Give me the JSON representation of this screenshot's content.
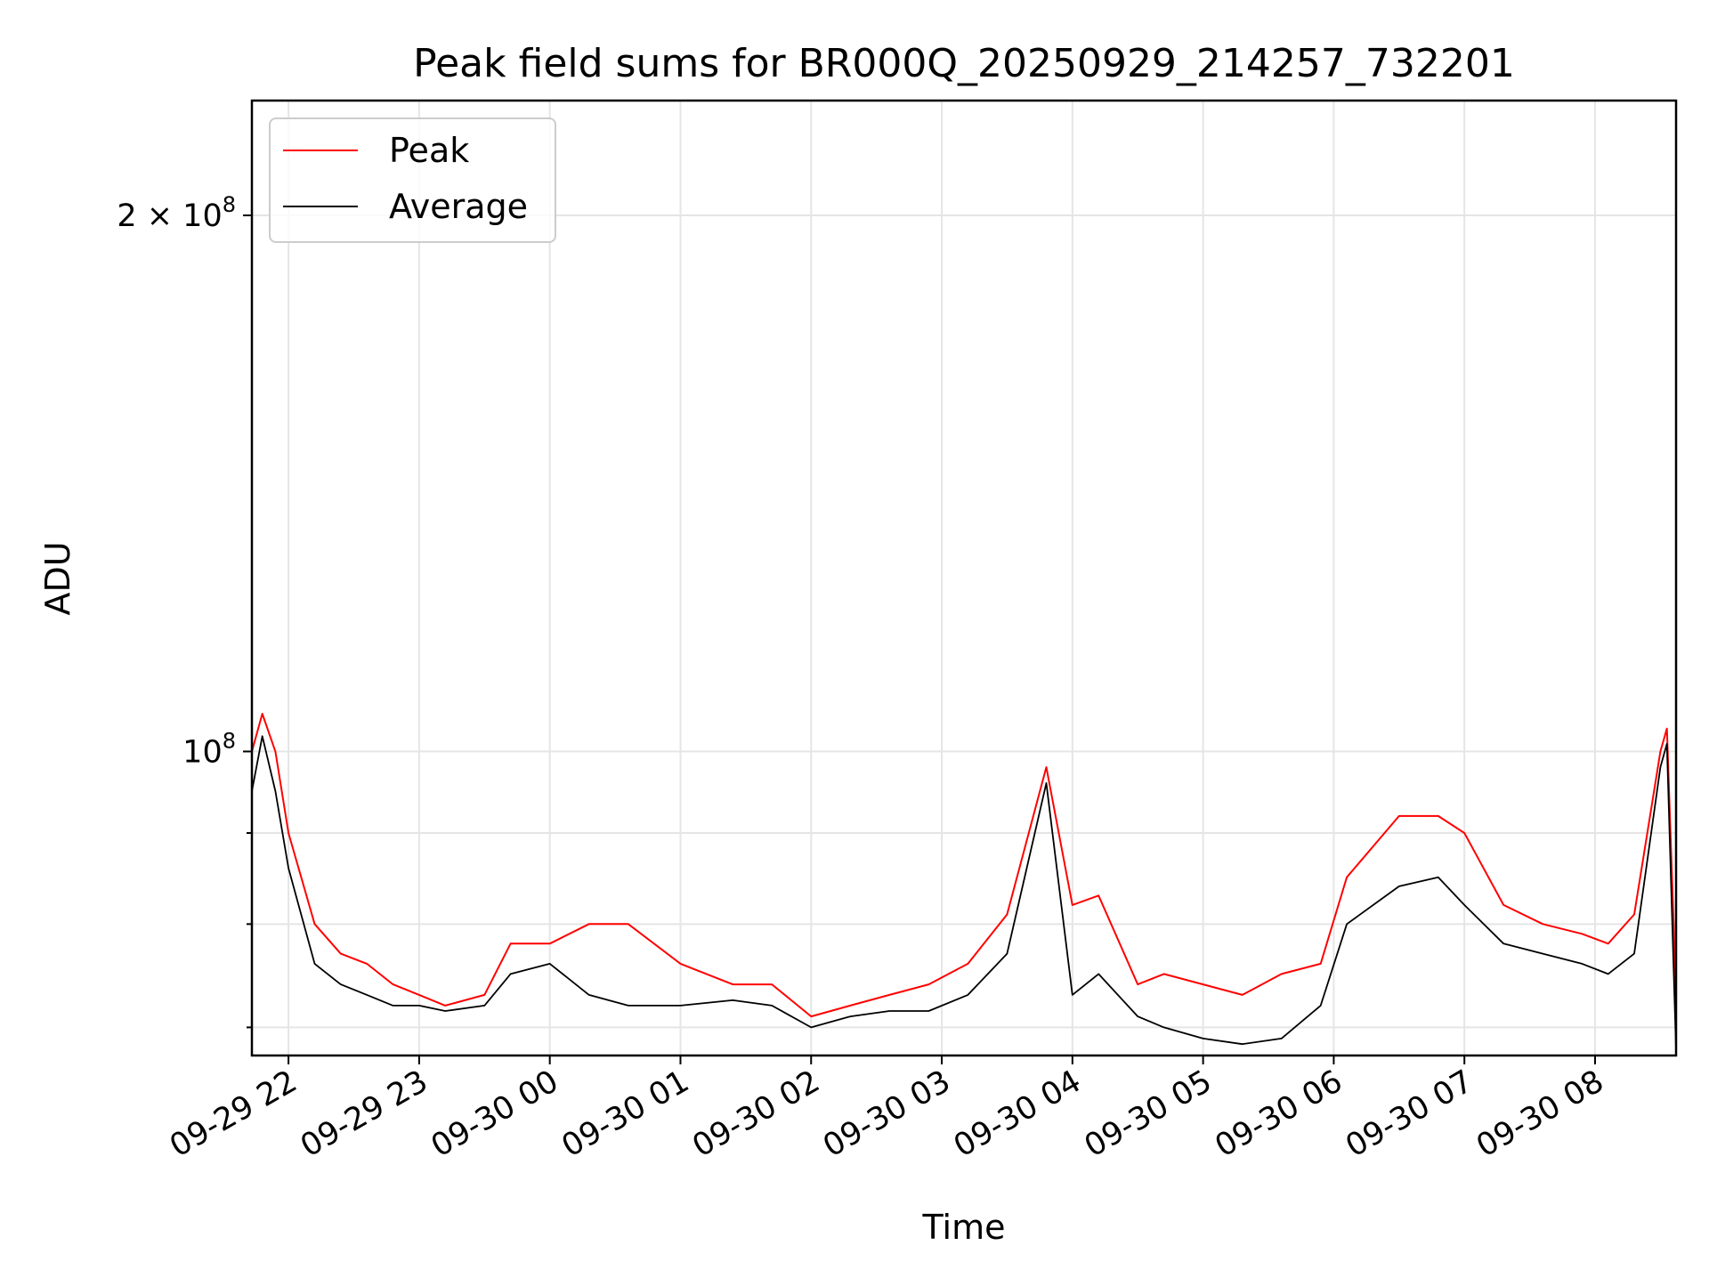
{
  "chart_data": {
    "type": "line",
    "title": "Peak field sums for BR000Q_20250929_214257_732201",
    "xlabel": "Time",
    "ylabel": "ADU",
    "yscale": "log",
    "ylim": [
      67500000,
      232000000
    ],
    "y_ticks": [
      {
        "value": 100000000,
        "label_base": "10",
        "label_exp": "8"
      },
      {
        "value": 200000000,
        "label_base": "2 × 10",
        "label_exp": "8"
      }
    ],
    "y_minor_ticks": [
      70000000,
      80000000,
      90000000
    ],
    "x_ticks": [
      "09-29 22",
      "09-29 23",
      "09-30 00",
      "09-30 01",
      "09-30 02",
      "09-30 03",
      "09-30 04",
      "09-30 05",
      "09-30 06",
      "09-30 07",
      "09-30 08"
    ],
    "xlim_hours": [
      21.72,
      32.62
    ],
    "grid": true,
    "legend_position": "upper left",
    "series": [
      {
        "name": "Peak",
        "color": "#ff0000",
        "x_hours": [
          21.72,
          21.8,
          21.9,
          22.0,
          22.2,
          22.4,
          22.6,
          22.8,
          23.0,
          23.2,
          23.5,
          23.7,
          24.0,
          24.3,
          24.6,
          25.0,
          25.4,
          25.7,
          26.0,
          26.3,
          26.6,
          26.9,
          27.2,
          27.5,
          27.8,
          28.0,
          28.2,
          28.5,
          28.7,
          29.0,
          29.3,
          29.6,
          29.9,
          30.1,
          30.5,
          30.8,
          31.0,
          31.3,
          31.6,
          31.9,
          32.1,
          32.3,
          32.5,
          32.55,
          32.62
        ],
        "values": [
          100000000,
          105000000,
          100000000,
          90000000,
          80000000,
          77000000,
          76000000,
          74000000,
          73000000,
          72000000,
          73000000,
          78000000,
          78000000,
          80000000,
          80000000,
          76000000,
          74000000,
          74000000,
          71000000,
          72000000,
          73000000,
          74000000,
          76000000,
          81000000,
          98000000,
          82000000,
          83000000,
          74000000,
          75000000,
          74000000,
          73000000,
          75000000,
          76000000,
          85000000,
          92000000,
          92000000,
          90000000,
          82000000,
          80000000,
          79000000,
          78000000,
          81000000,
          100000000,
          103000000,
          73000000
        ]
      },
      {
        "name": "Average",
        "color": "#000000",
        "x_hours": [
          21.72,
          21.8,
          21.9,
          22.0,
          22.2,
          22.4,
          22.6,
          22.8,
          23.0,
          23.2,
          23.5,
          23.7,
          24.0,
          24.3,
          24.6,
          25.0,
          25.4,
          25.7,
          26.0,
          26.3,
          26.6,
          26.9,
          27.2,
          27.5,
          27.8,
          28.0,
          28.2,
          28.5,
          28.7,
          29.0,
          29.3,
          29.6,
          29.9,
          30.1,
          30.5,
          30.8,
          31.0,
          31.3,
          31.6,
          31.9,
          32.1,
          32.3,
          32.5,
          32.55,
          32.62
        ],
        "values": [
          95000000,
          102000000,
          95000000,
          86000000,
          76000000,
          74000000,
          73000000,
          72000000,
          72000000,
          71500000,
          72000000,
          75000000,
          76000000,
          73000000,
          72000000,
          72000000,
          72500000,
          72000000,
          70000000,
          71000000,
          71500000,
          71500000,
          73000000,
          77000000,
          96000000,
          73000000,
          75000000,
          71000000,
          70000000,
          69000000,
          68500000,
          69000000,
          72000000,
          80000000,
          84000000,
          85000000,
          82000000,
          78000000,
          77000000,
          76000000,
          75000000,
          77000000,
          98000000,
          101000000,
          68000000
        ]
      }
    ]
  }
}
